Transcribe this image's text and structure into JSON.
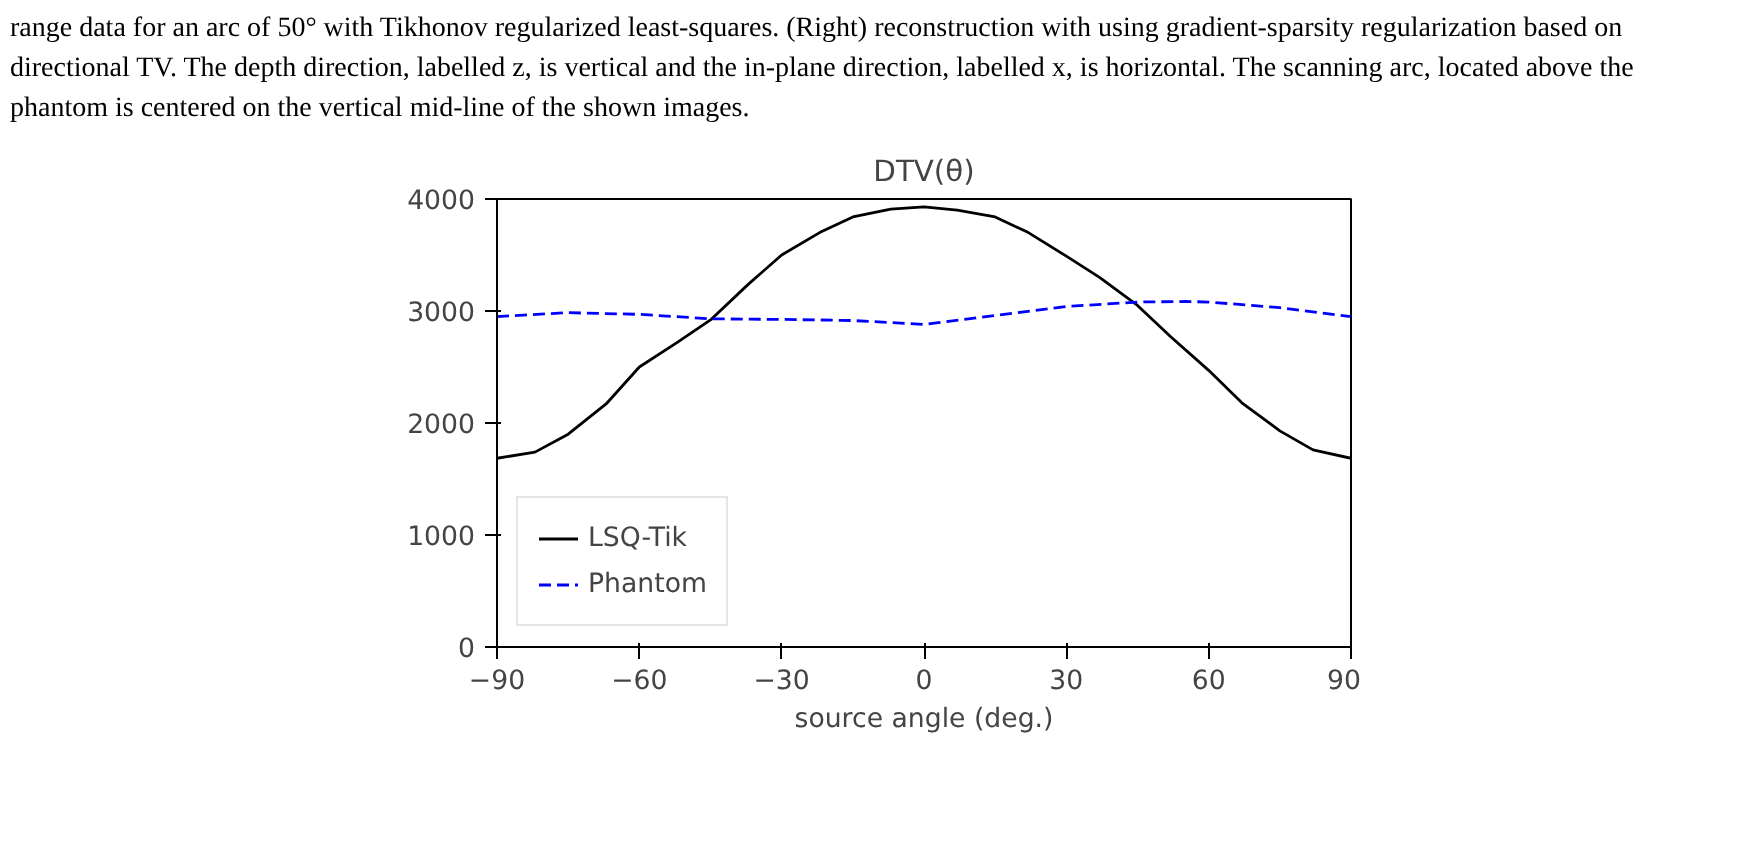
{
  "chart_data": {
    "type": "line",
    "title": "DTV(θ)",
    "xlabel": "source angle (deg.)",
    "annotations": [
      "range data for an arc of 50° with Tikhonov regularized least-squares. (Right) reconstruction with using gradient-sparsity regularization based on directional TV. The depth direction, labelled z, is vertical and the in-plane direction, labelled x, is horizontal. The scanning arc, located above the phantom is centered on the vertical mid-line of the shown images."
    ],
    "xlim": [
      -90,
      90
    ],
    "ylim": [
      0,
      4000
    ],
    "xticks": [
      -90,
      -60,
      -30,
      0,
      30,
      60,
      90
    ],
    "yticks": [
      0,
      1000,
      2000,
      3000,
      4000
    ],
    "legend": "bottom left",
    "grid": false,
    "series": [
      {
        "name": "LSQ-Tik",
        "color": "#000000",
        "line_style": "solid",
        "x": [
          -90,
          -82,
          -75,
          -67,
          -60,
          -52,
          -45,
          -37,
          -30,
          -22,
          -15,
          -7,
          0,
          7,
          15,
          22,
          30,
          37,
          45,
          52,
          60,
          67,
          75,
          82,
          90
        ],
        "values": [
          1685,
          1740,
          1900,
          2170,
          2500,
          2720,
          2920,
          3240,
          3500,
          3700,
          3840,
          3910,
          3930,
          3900,
          3840,
          3700,
          3490,
          3300,
          3050,
          2770,
          2470,
          2180,
          1930,
          1760,
          1685
        ]
      },
      {
        "name": "Phantom",
        "color": "#0000ff",
        "line_style": "dashed",
        "x": [
          -90,
          -75,
          -60,
          -45,
          -30,
          -15,
          0,
          15,
          30,
          45,
          55,
          60,
          75,
          90
        ],
        "values": [
          2950,
          2985,
          2970,
          2930,
          2925,
          2915,
          2880,
          2960,
          3040,
          3080,
          3085,
          3080,
          3030,
          2950
        ]
      }
    ]
  }
}
